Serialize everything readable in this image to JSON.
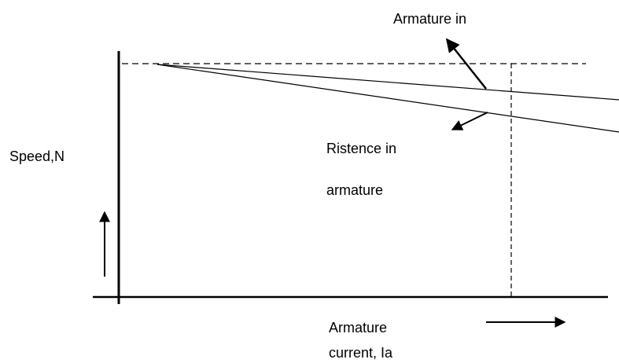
{
  "annotations": {
    "armature_in": "Armature in",
    "resistance_line1": "Ristence in",
    "resistance_line2": "armature"
  },
  "y_axis_label": "Speed,N",
  "x_axis_label": {
    "line1": "Armature",
    "line2": "current, Ia"
  }
}
